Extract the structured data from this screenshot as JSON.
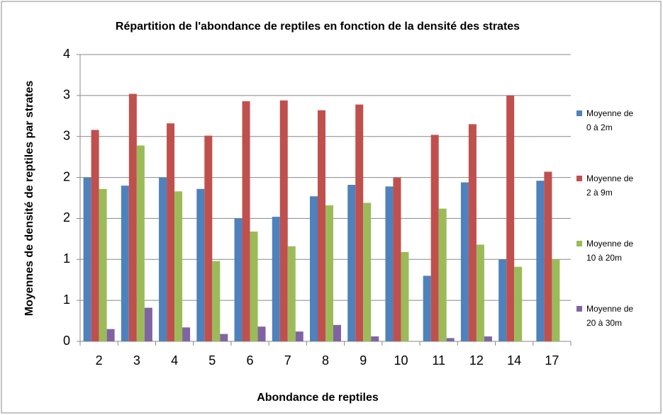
{
  "chart_data": {
    "type": "bar",
    "title": "Répartition de l'abondance de reptiles en fonction de la densité des strates",
    "x_label": "Abondance de reptiles",
    "y_label": "Moyennes de densité de reptiles par strates",
    "categories": [
      "2",
      "3",
      "4",
      "5",
      "6",
      "7",
      "8",
      "9",
      "10",
      "11",
      "12",
      "14",
      "17"
    ],
    "series": [
      {
        "name": "Moyenne de 0 à 2m",
        "color": "#4f81bd",
        "values": [
          2.0,
          1.9,
          2.0,
          1.86,
          1.5,
          1.52,
          1.77,
          1.91,
          1.89,
          0.8,
          1.94,
          1.0,
          1.96
        ]
      },
      {
        "name": "Moyenne de 2 à 9m",
        "color": "#c0504d",
        "values": [
          2.58,
          3.02,
          2.66,
          2.51,
          2.93,
          2.94,
          2.82,
          2.89,
          2.0,
          2.52,
          2.65,
          3.0,
          2.07
        ]
      },
      {
        "name": "Moyenne de 10 à 20m",
        "color": "#9bbb59",
        "values": [
          1.86,
          2.39,
          1.83,
          0.98,
          1.34,
          1.16,
          1.66,
          1.69,
          1.09,
          1.62,
          1.18,
          0.91,
          1.0
        ]
      },
      {
        "name": "Moyenne de 20 à 30m",
        "color": "#8064a2",
        "values": [
          0.15,
          0.41,
          0.17,
          0.09,
          0.18,
          0.12,
          0.2,
          0.06,
          null,
          0.04,
          0.06,
          null,
          null
        ]
      }
    ],
    "ylim": [
      0,
      3.5
    ],
    "yticks": [
      0,
      {
        "value": 0.5,
        "label": "1"
      },
      1,
      {
        "value": 1.5,
        "label": "2"
      },
      2,
      {
        "value": 2.5,
        "label": "3"
      },
      3,
      {
        "value": 3.5,
        "label": "4"
      }
    ],
    "grid": true,
    "legend": "right"
  }
}
